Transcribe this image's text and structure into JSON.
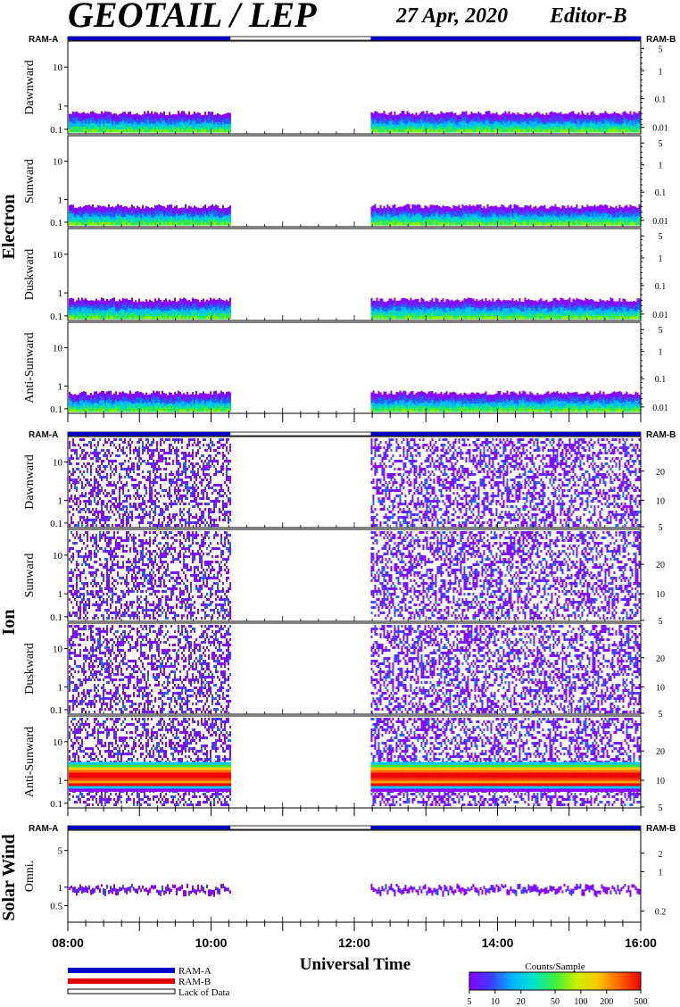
{
  "header": {
    "title": "GEOTAIL / LEP",
    "date": "27 Apr, 2020",
    "editor": "Editor-B"
  },
  "groups": [
    {
      "id": "electron",
      "label": "Electron"
    },
    {
      "id": "ion",
      "label": "Ion"
    },
    {
      "id": "solar",
      "label": "Solar Wind"
    }
  ],
  "ram_labels": {
    "a": "RAM-A",
    "b": "RAM-B"
  },
  "x_axis": {
    "title": "Universal Time",
    "ticks": [
      "08:00",
      "10:00",
      "12:00",
      "14:00",
      "16:00"
    ],
    "tick_hours": [
      8,
      10,
      12,
      14,
      16
    ],
    "range_hours": [
      8,
      16
    ]
  },
  "legend": {
    "ram_a": "RAM-A",
    "ram_b": "RAM-B",
    "lack": "Lack of Data"
  },
  "colorbar": {
    "title": "Counts/Sample",
    "ticks": [
      "5",
      "10",
      "20",
      "50",
      "100",
      "200",
      "500"
    ],
    "colors": [
      "#8a00ff",
      "#3c3cff",
      "#00b4ff",
      "#00e6c8",
      "#3cf03c",
      "#c8f000",
      "#ffc800",
      "#ff6400",
      "#f00000"
    ]
  },
  "chart_data": {
    "type": "heatmap",
    "data_gap_hours": [
      10.27,
      12.23
    ],
    "ram_a_intervals_hours": [
      [
        8.0,
        10.27
      ],
      [
        12.23,
        16.0
      ]
    ],
    "panels": [
      {
        "group": "electron",
        "label": "Dawnward",
        "y_ticks": [
          "10",
          "1",
          "0.1"
        ],
        "right_ticks": [
          "5",
          "1",
          "0.1",
          "0.01"
        ]
      },
      {
        "group": "electron",
        "label": "Sunward",
        "y_ticks": [
          "10",
          "1",
          "0.1"
        ],
        "right_ticks": [
          "5",
          "1",
          "0.1",
          "0.01"
        ]
      },
      {
        "group": "electron",
        "label": "Duskward",
        "y_ticks": [
          "10",
          "1",
          "0.1"
        ],
        "right_ticks": [
          "5",
          "1",
          "0.1",
          "0.01"
        ]
      },
      {
        "group": "electron",
        "label": "Anti-Sunward",
        "y_ticks": [
          "10",
          "1",
          "0.1"
        ],
        "right_ticks": [
          "5",
          "1",
          "0.1",
          "0.01"
        ]
      },
      {
        "group": "ion",
        "label": "Dawnward",
        "y_ticks": [
          "10",
          "1",
          "0.1"
        ],
        "right_ticks": [
          "20",
          "10",
          "5"
        ]
      },
      {
        "group": "ion",
        "label": "Sunward",
        "y_ticks": [
          "10",
          "1",
          "0.1"
        ],
        "right_ticks": [
          "20",
          "10",
          "5"
        ]
      },
      {
        "group": "ion",
        "label": "Duskward",
        "y_ticks": [
          "10",
          "1",
          "0.1"
        ],
        "right_ticks": [
          "20",
          "10",
          "5"
        ]
      },
      {
        "group": "ion",
        "label": "Anti-Sunward",
        "y_ticks": [
          "10",
          "1",
          "0.1"
        ],
        "right_ticks": [
          "20",
          "10",
          "5"
        ]
      },
      {
        "group": "solar",
        "label": "Omni.",
        "y_ticks": [
          "5",
          "1",
          "0.5"
        ],
        "right_ticks": [
          "2",
          "1",
          "0.2"
        ]
      }
    ]
  }
}
